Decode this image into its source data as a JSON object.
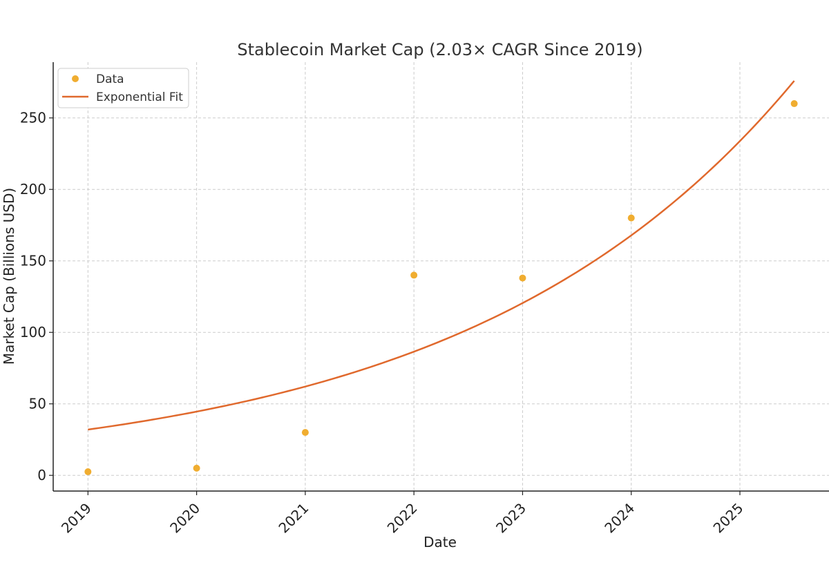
{
  "chart_data": {
    "type": "scatter",
    "title": "Stablecoin Market Cap (2.03× CAGR Since 2019)",
    "xlabel": "Date",
    "ylabel": "Market Cap (Billions USD)",
    "x_ticks": [
      "2019",
      "2020",
      "2021",
      "2022",
      "2023",
      "2024",
      "2025"
    ],
    "y_ticks": [
      0,
      50,
      100,
      150,
      200,
      250
    ],
    "xlim": [
      2018.68,
      2025.82
    ],
    "ylim": [
      -11,
      289
    ],
    "grid": true,
    "legend_position": "top-left",
    "series": [
      {
        "name": "Data",
        "kind": "scatter",
        "color": "#f0ad30",
        "x": [
          2019.0,
          2020.0,
          2021.0,
          2022.0,
          2023.0,
          2024.0,
          2025.5
        ],
        "values": [
          2.5,
          5,
          30,
          140,
          138,
          180,
          260
        ]
      },
      {
        "name": "Exponential Fit",
        "kind": "line",
        "color": "#e0692d",
        "start_x": 2019.0,
        "end_x": 2025.5,
        "a": 32,
        "growth_rate": 1.393
      }
    ]
  }
}
